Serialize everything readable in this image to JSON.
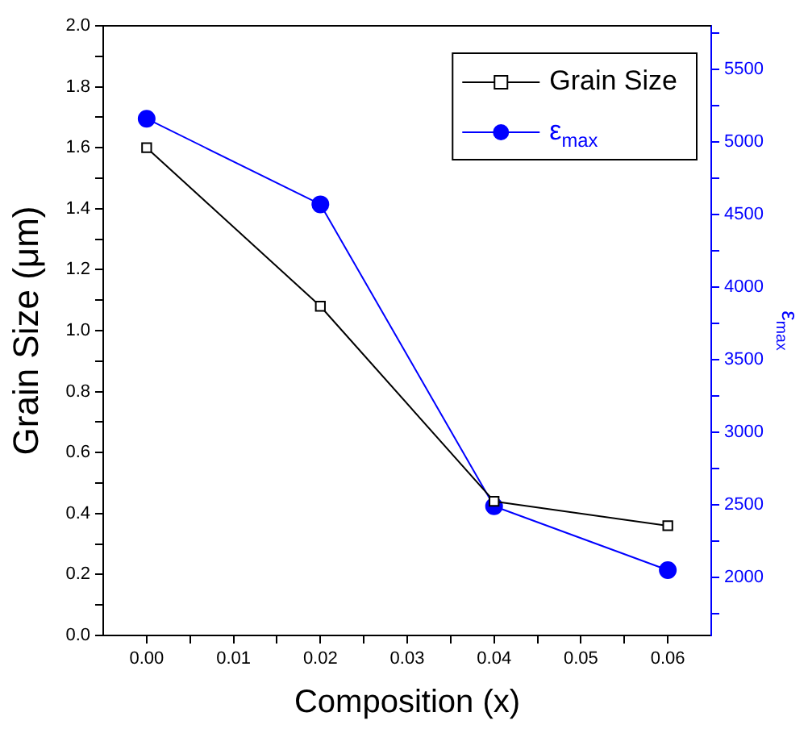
{
  "chart_data": {
    "type": "line",
    "xlabel": "Composition (x)",
    "ylabel": "Grain Size (μm)",
    "y2label": "ε$_{max}$",
    "x": [
      0,
      0.02,
      0.04,
      0.06
    ],
    "series": [
      {
        "name": "Grain Size",
        "color": "#000000",
        "marker": "square",
        "values": [
          1.6,
          1.08,
          0.44,
          0.36
        ]
      },
      {
        "name": "ε$_{max}$",
        "color": "#0000ff",
        "marker": "circle",
        "axis": "y2",
        "values": [
          5160,
          4570,
          2490,
          2050
        ]
      }
    ],
    "xlim": [
      -0.005,
      0.065
    ],
    "xticks": [
      {
        "value": 0,
        "label": "0.00"
      },
      {
        "value": 0.005,
        "label": null
      },
      0.01,
      {
        "value": 0.015,
        "label": null
      },
      0.02,
      {
        "value": 0.025,
        "label": null
      },
      0.03,
      {
        "value": 0.035,
        "label": null
      },
      0.04,
      {
        "value": 0.045,
        "label": null
      },
      0.05,
      {
        "value": 0.055,
        "label": null
      },
      0.06
    ],
    "ylim": [
      0,
      2
    ],
    "yticks": [
      {
        "value": 0,
        "label": "0.0"
      },
      {
        "value": 0.1,
        "label": null
      },
      0.2,
      {
        "value": 0.3,
        "label": null
      },
      0.4,
      {
        "value": 0.5,
        "label": null
      },
      0.6,
      {
        "value": 0.7,
        "label": null
      },
      0.8,
      {
        "value": 0.9,
        "label": null
      },
      {
        "value": 1,
        "label": "1.0"
      },
      {
        "value": 1.1,
        "label": null
      },
      1.2,
      {
        "value": 1.3,
        "label": null
      },
      1.4,
      {
        "value": 1.5,
        "label": null
      },
      1.6,
      {
        "value": 1.7,
        "label": null
      },
      1.8,
      {
        "value": 1.9,
        "label": null
      },
      {
        "value": 2,
        "label": "2.0"
      }
    ],
    "y2lim": [
      1600,
      5800
    ],
    "y2ticks": [
      {
        "value": 1750,
        "label": null
      },
      2000,
      {
        "value": 2250,
        "label": null
      },
      2500,
      {
        "value": 2750,
        "label": null
      },
      3000,
      {
        "value": 3250,
        "label": null
      },
      3500,
      {
        "value": 3750,
        "label": null
      },
      4000,
      {
        "value": 4250,
        "label": null
      },
      4500,
      {
        "value": 4750,
        "label": null
      },
      5000,
      {
        "value": 5250,
        "label": null
      },
      5500,
      {
        "value": 5750,
        "label": null
      }
    ],
    "grid": false,
    "legend": "top right"
  }
}
